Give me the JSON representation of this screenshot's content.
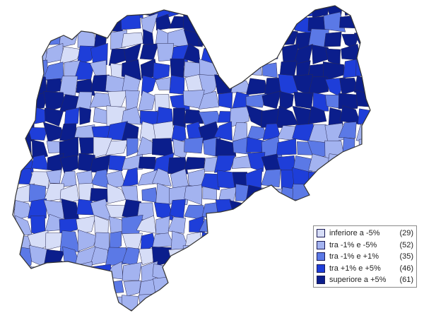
{
  "map": {
    "region_outline_color": "#333333",
    "classes": [
      {
        "label": "inferiore a -5%",
        "count": "(29)",
        "color": "#D6DDF7"
      },
      {
        "label": "tra -1% e -5%",
        "count": "(52)",
        "color": "#A3B3F0"
      },
      {
        "label": "tra -1% e +1%",
        "count": "(35)",
        "color": "#5B79E6"
      },
      {
        "label": "tra +1% e +5%",
        "count": "(46)",
        "color": "#1E3ED9"
      },
      {
        "label": "superiore a +5%",
        "count": "(61)",
        "color": "#0B1E8C"
      }
    ]
  }
}
